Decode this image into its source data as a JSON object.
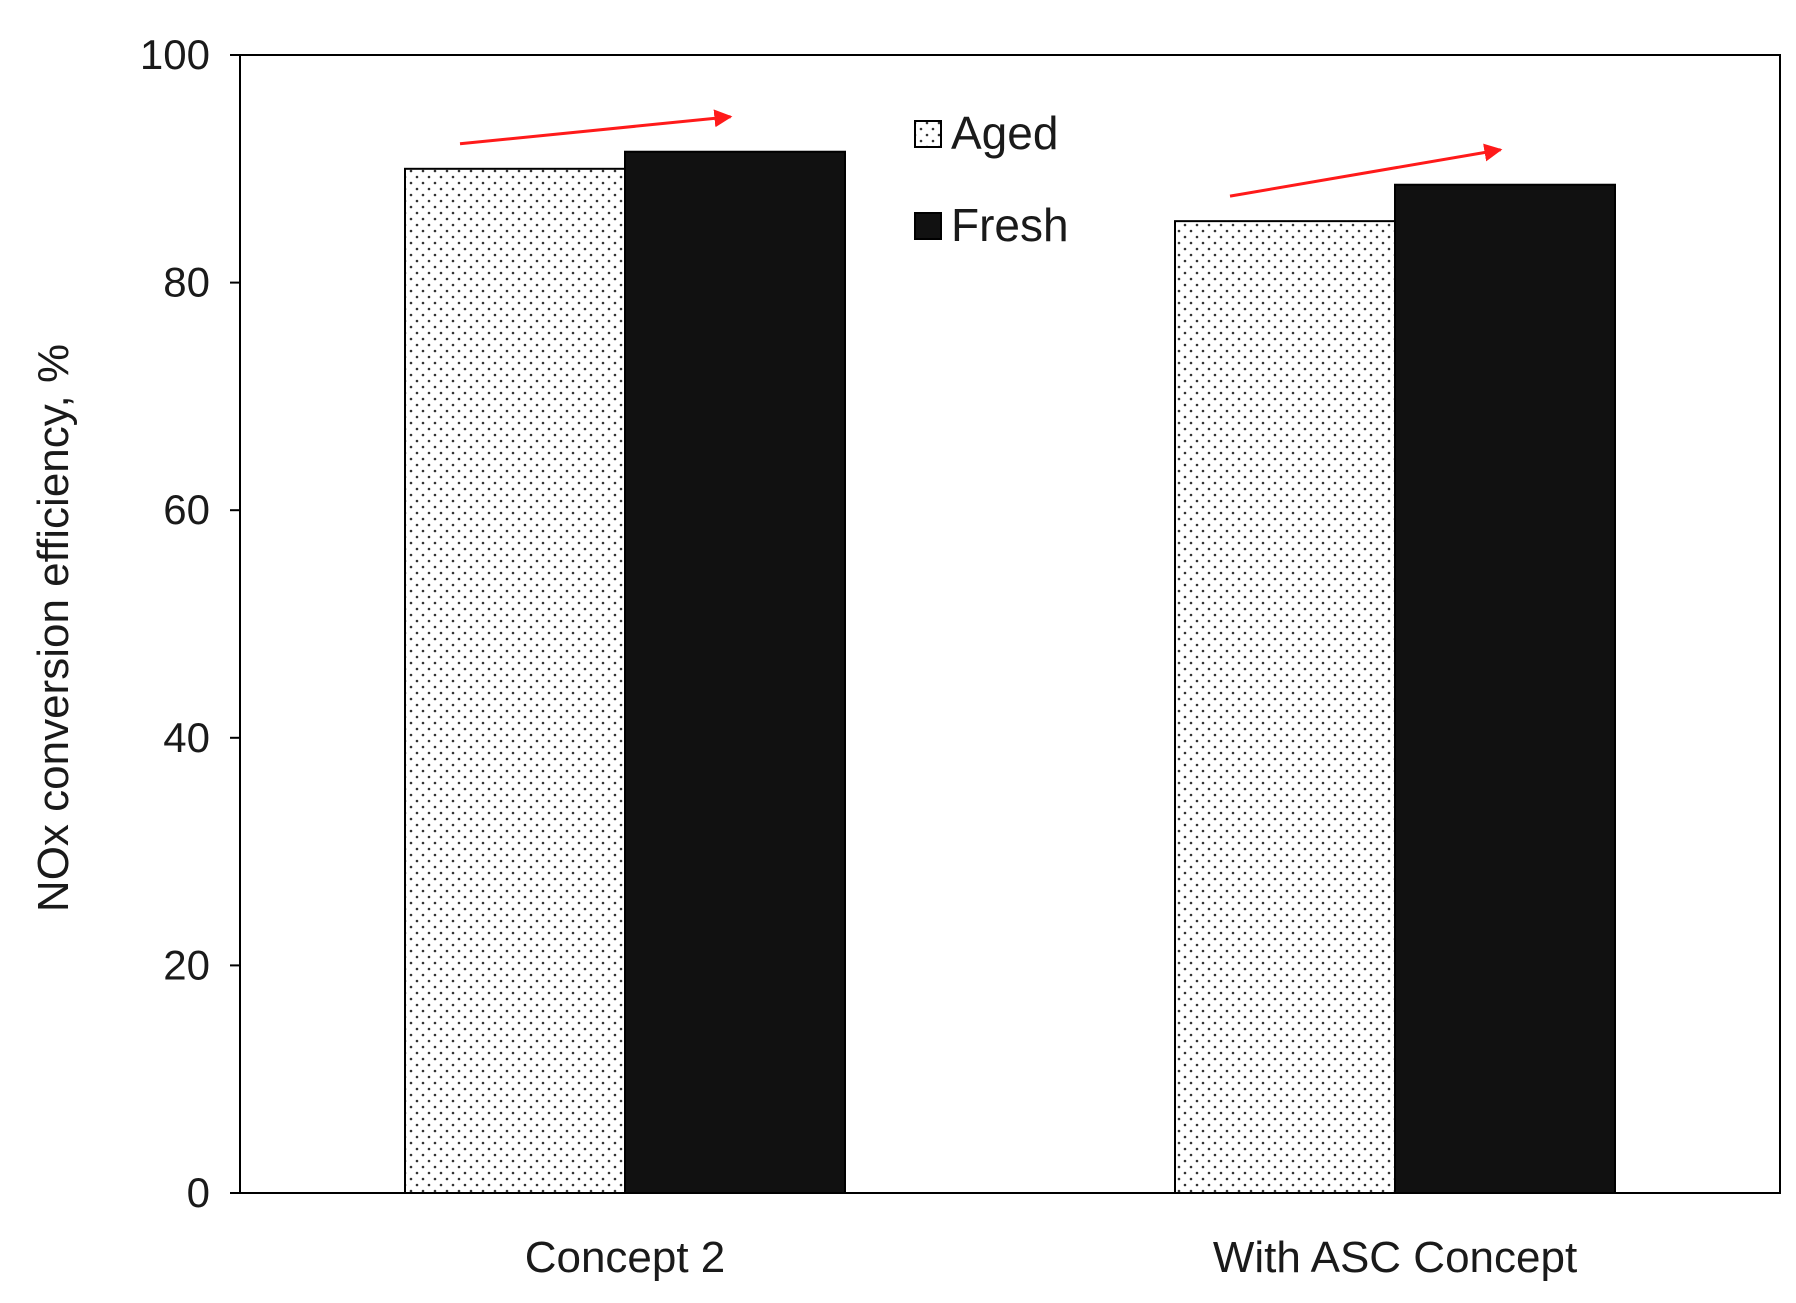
{
  "chart_data": {
    "type": "bar",
    "title": "",
    "xlabel": "",
    "ylabel": "NOx conversion efficiency, %",
    "ylim": [
      0,
      100
    ],
    "yticks": [
      0,
      20,
      40,
      60,
      80,
      100
    ],
    "categories": [
      "Concept 2",
      "With ASC Concept"
    ],
    "series": [
      {
        "name": "Aged",
        "values": [
          90.0,
          85.4
        ],
        "fill": "dotted"
      },
      {
        "name": "Fresh",
        "values": [
          91.5,
          88.6
        ],
        "fill": "solid"
      }
    ],
    "legend": {
      "placement": "top-center"
    },
    "annotations": [
      {
        "type": "arrow",
        "category": "Concept 2",
        "from_series": "Aged",
        "to_series": "Fresh"
      },
      {
        "type": "arrow",
        "category": "With ASC Concept",
        "from_series": "Aged",
        "to_series": "Fresh"
      }
    ],
    "grid": false
  },
  "colors": {
    "fresh": "#111111",
    "aged_dot": "#333333",
    "aged_bg": "#ffffff",
    "arrow": "#ff1a1a",
    "axis": "#000000"
  }
}
